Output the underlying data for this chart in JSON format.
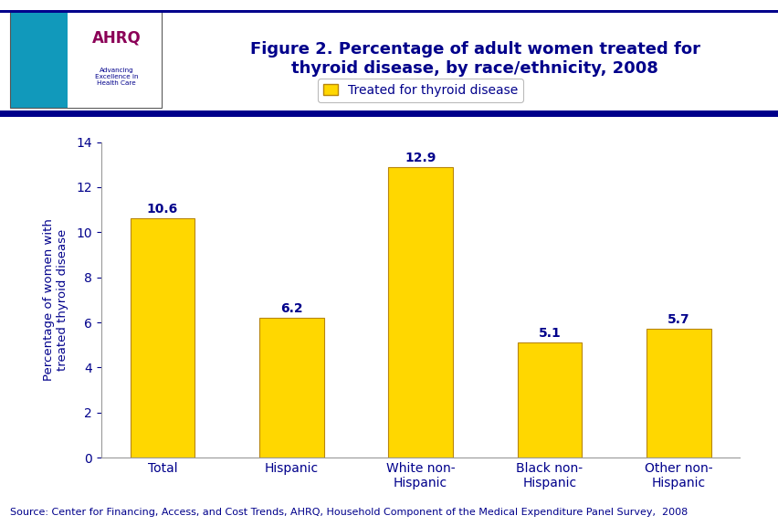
{
  "title": "Figure 2. Percentage of adult women treated for\nthyroid disease, by race/ethnicity, 2008",
  "title_color": "#00008B",
  "title_fontsize": 13,
  "categories": [
    "Total",
    "Hispanic",
    "White non-\nHispanic",
    "Black non-\nHispanic",
    "Other non-\nHispanic"
  ],
  "values": [
    10.6,
    6.2,
    12.9,
    5.1,
    5.7
  ],
  "bar_color": "#FFD700",
  "bar_edgecolor": "#B8860B",
  "ylabel": "Percentage of women with\ntreated thyroid disease",
  "ylabel_color": "#00008B",
  "ylabel_fontsize": 9.5,
  "ylim": [
    0,
    14
  ],
  "yticks": [
    0,
    2,
    4,
    6,
    8,
    10,
    12,
    14
  ],
  "tick_color": "#00008B",
  "tick_fontsize": 10,
  "xtick_fontsize": 10,
  "legend_label": "Treated for thyroid disease",
  "legend_fontsize": 10,
  "value_label_color": "#00008B",
  "value_label_fontsize": 10,
  "source_text": "Source: Center for Financing, Access, and Cost Trends, AHRQ, Household Component of the Medical Expenditure Panel Survey,  2008",
  "source_fontsize": 8,
  "source_color": "#00008B",
  "background_color": "#FFFFFF",
  "header_line_color": "#00008B",
  "bar_width": 0.5,
  "header_bg_color": "#FFFFFF",
  "logo_box_color": "#1E90FF",
  "logo_text_ahrq": "AHRQ",
  "logo_text_sub": "Advancing\nExcellence in\nHealth Care"
}
